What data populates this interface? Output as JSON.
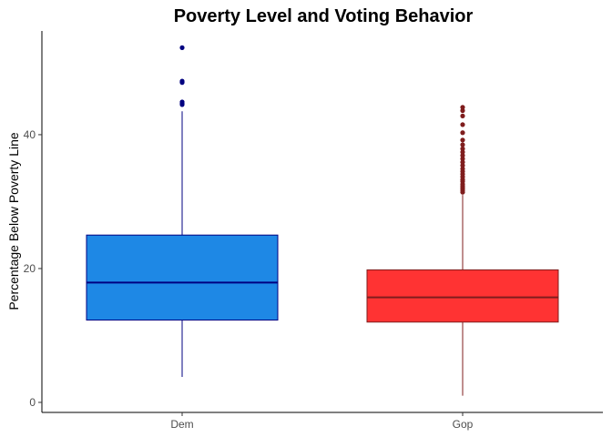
{
  "chart_data": {
    "type": "boxplot",
    "title": "Poverty Level and Voting Behavior",
    "xlabel": "",
    "ylabel": "Percentage Below Poverty Line",
    "ylim": [
      -1.5,
      55.5
    ],
    "y_ticks": [
      0,
      20,
      40
    ],
    "categories": [
      "Dem",
      "Gop"
    ],
    "grid": false,
    "series": [
      {
        "category": "Dem",
        "whisker_low": 3.8,
        "q1": 12.3,
        "median": 17.9,
        "q3": 25.0,
        "whisker_high": 43.5,
        "outliers": [
          44.5,
          44.7,
          44.9,
          47.8,
          48.0,
          53.0
        ],
        "fill_color": "#1e88e5",
        "line_color": "#000080"
      },
      {
        "category": "Gop",
        "whisker_low": 1.0,
        "q1": 12.0,
        "median": 15.7,
        "q3": 19.8,
        "whisker_high": 31.0,
        "outliers": [
          31.4,
          31.7,
          32.0,
          32.3,
          32.6,
          33.0,
          33.3,
          33.7,
          34.1,
          34.5,
          34.9,
          35.4,
          35.9,
          36.4,
          36.9,
          37.4,
          37.9,
          38.5,
          39.2,
          40.3,
          41.5,
          42.8,
          43.6,
          44.1
        ],
        "fill_color": "#ff3333",
        "line_color": "#7f1d1d"
      }
    ]
  }
}
